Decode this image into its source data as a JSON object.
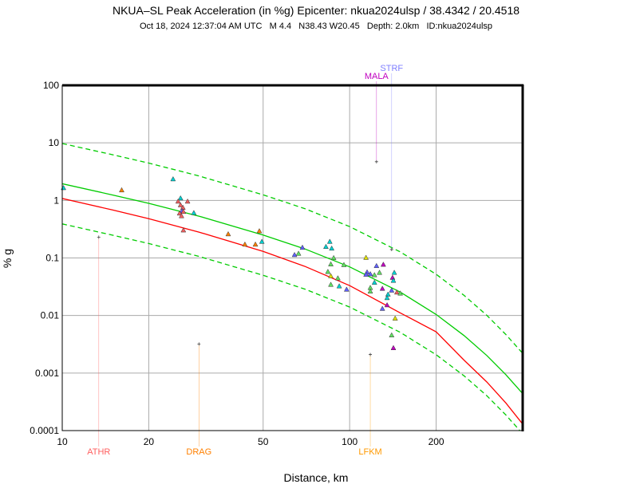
{
  "chart_data": {
    "type": "scatter",
    "title": "NKUA–SL Peak Acceleration (in %g) Epicenter: nkua2024ulsp / 38.4342 / 20.4518",
    "subtitle": "Oct 18, 2024 12:37:04 AM UTC   M 4.4   N38.43 W20.45   Depth: 2.0km   ID:nkua2024ulsp",
    "xlabel": "Distance, km",
    "ylabel": "% g",
    "xscale": "log",
    "yscale": "log",
    "xlim": [
      10,
      400
    ],
    "ylim": [
      0.0001,
      100
    ],
    "xticks": [
      10,
      20,
      50,
      100,
      200
    ],
    "xtick_labels": [
      "10",
      "20",
      "50",
      "100",
      "200"
    ],
    "yticks": [
      0.0001,
      0.001,
      0.01,
      0.1,
      1,
      10,
      100
    ],
    "ytick_labels": [
      "0.0001",
      "0.001",
      "0.01",
      "0.1",
      "1",
      "10",
      "100"
    ],
    "grid": true,
    "curves": [
      {
        "name": "median-red",
        "color": "#ff0000",
        "dashed": false,
        "x": [
          10,
          15,
          20,
          30,
          50,
          70,
          100,
          150,
          200,
          250,
          300,
          350,
          400
        ],
        "y": [
          1.08,
          0.68,
          0.48,
          0.28,
          0.13,
          0.071,
          0.033,
          0.0111,
          0.0052,
          0.00168,
          0.0007,
          0.0003,
          0.00013
        ]
      },
      {
        "name": "median-green",
        "color": "#00cc00",
        "dashed": false,
        "x": [
          10,
          15,
          20,
          30,
          50,
          70,
          100,
          150,
          200,
          250,
          300,
          350,
          400
        ],
        "y": [
          1.95,
          1.24,
          0.89,
          0.53,
          0.25,
          0.143,
          0.07,
          0.0255,
          0.0104,
          0.00448,
          0.00202,
          0.00093,
          0.00044
        ]
      },
      {
        "name": "upper-green",
        "color": "#00cc00",
        "dashed": true,
        "x": [
          10,
          15,
          20,
          30,
          50,
          70,
          100,
          150,
          200,
          250,
          300,
          350,
          400
        ],
        "y": [
          9.75,
          6.2,
          4.45,
          2.65,
          1.25,
          0.715,
          0.35,
          0.1275,
          0.052,
          0.0224,
          0.0101,
          0.00465,
          0.0022
        ]
      },
      {
        "name": "lower-green",
        "color": "#00cc00",
        "dashed": true,
        "x": [
          10,
          15,
          20,
          30,
          50,
          70,
          100,
          150,
          200,
          250,
          300,
          350,
          400
        ],
        "y": [
          0.39,
          0.248,
          0.178,
          0.106,
          0.05,
          0.0286,
          0.014,
          0.0051,
          0.00208,
          0.000896,
          0.000404,
          0.000186,
          8.8e-05
        ]
      }
    ],
    "points": [
      {
        "x": 10.1,
        "y": 1.63,
        "c": "#00d0d0"
      },
      {
        "x": 16.1,
        "y": 1.49,
        "c": "#ff8000"
      },
      {
        "x": 24.3,
        "y": 2.32,
        "c": "#00d0d0"
      },
      {
        "x": 25.8,
        "y": 1.08,
        "c": "#00d0d0"
      },
      {
        "x": 25.3,
        "y": 0.95,
        "c": "#f06060"
      },
      {
        "x": 27.3,
        "y": 0.95,
        "c": "#f06060"
      },
      {
        "x": 25.8,
        "y": 0.82,
        "c": "#f06060"
      },
      {
        "x": 26.3,
        "y": 0.74,
        "c": "#f06060"
      },
      {
        "x": 26.1,
        "y": 0.65,
        "c": "#6060ff"
      },
      {
        "x": 25.6,
        "y": 0.59,
        "c": "#f06060"
      },
      {
        "x": 26.4,
        "y": 0.63,
        "c": "#f06060"
      },
      {
        "x": 26.0,
        "y": 0.53,
        "c": "#f06060"
      },
      {
        "x": 28.7,
        "y": 0.6,
        "c": "#00d0d0"
      },
      {
        "x": 26.4,
        "y": 0.3,
        "c": "#f06060"
      },
      {
        "x": 37.8,
        "y": 0.257,
        "c": "#ff8000"
      },
      {
        "x": 48.5,
        "y": 0.29,
        "c": "#ff8000"
      },
      {
        "x": 43.2,
        "y": 0.17,
        "c": "#ff8000"
      },
      {
        "x": 47.0,
        "y": 0.17,
        "c": "#ff8000"
      },
      {
        "x": 49.5,
        "y": 0.19,
        "c": "#00d0d0"
      },
      {
        "x": 64.3,
        "y": 0.112,
        "c": "#6060ff"
      },
      {
        "x": 66.4,
        "y": 0.118,
        "c": "#60e060"
      },
      {
        "x": 68.5,
        "y": 0.15,
        "c": "#6060ff"
      },
      {
        "x": 85.3,
        "y": 0.19,
        "c": "#00d0d0"
      },
      {
        "x": 82.7,
        "y": 0.155,
        "c": "#00d0d0"
      },
      {
        "x": 86.6,
        "y": 0.145,
        "c": "#00d0d0"
      },
      {
        "x": 88,
        "y": 0.099,
        "c": "#60e060"
      },
      {
        "x": 86,
        "y": 0.077,
        "c": "#60e060"
      },
      {
        "x": 95.5,
        "y": 0.075,
        "c": "#60e060"
      },
      {
        "x": 84,
        "y": 0.057,
        "c": "#60e060"
      },
      {
        "x": 86,
        "y": 0.048,
        "c": "#e0e000"
      },
      {
        "x": 91,
        "y": 0.044,
        "c": "#60e060"
      },
      {
        "x": 86,
        "y": 0.034,
        "c": "#60e060"
      },
      {
        "x": 92,
        "y": 0.032,
        "c": "#00d0d0"
      },
      {
        "x": 97.6,
        "y": 0.028,
        "c": "#6060ff"
      },
      {
        "x": 114,
        "y": 0.1,
        "c": "#e0e000"
      },
      {
        "x": 124,
        "y": 0.072,
        "c": "#6060ff"
      },
      {
        "x": 131,
        "y": 0.076,
        "c": "#c000c0"
      },
      {
        "x": 127,
        "y": 0.055,
        "c": "#60e060"
      },
      {
        "x": 115,
        "y": 0.056,
        "c": "#6060ff"
      },
      {
        "x": 114,
        "y": 0.051,
        "c": "#6060ff"
      },
      {
        "x": 118,
        "y": 0.052,
        "c": "#6060ff"
      },
      {
        "x": 122,
        "y": 0.05,
        "c": "#60e060"
      },
      {
        "x": 143,
        "y": 0.055,
        "c": "#00d0d0"
      },
      {
        "x": 141,
        "y": 0.045,
        "c": "#c000c0"
      },
      {
        "x": 142,
        "y": 0.04,
        "c": "#00d0d0"
      },
      {
        "x": 122,
        "y": 0.037,
        "c": "#00d0d0"
      },
      {
        "x": 118,
        "y": 0.03,
        "c": "#60e060"
      },
      {
        "x": 118,
        "y": 0.026,
        "c": "#60e060"
      },
      {
        "x": 130,
        "y": 0.029,
        "c": "#c000c0"
      },
      {
        "x": 136,
        "y": 0.023,
        "c": "#00d0d0"
      },
      {
        "x": 135,
        "y": 0.02,
        "c": "#00d0d0"
      },
      {
        "x": 140,
        "y": 0.027,
        "c": "#6060ff"
      },
      {
        "x": 146,
        "y": 0.025,
        "c": "#f06060"
      },
      {
        "x": 150,
        "y": 0.024,
        "c": "#60e060"
      },
      {
        "x": 135,
        "y": 0.015,
        "c": "#c000c0"
      },
      {
        "x": 130,
        "y": 0.013,
        "c": "#6060ff"
      },
      {
        "x": 144,
        "y": 0.0088,
        "c": "#e0e000"
      },
      {
        "x": 140,
        "y": 0.0045,
        "c": "#60e060"
      },
      {
        "x": 142,
        "y": 0.0027,
        "c": "#c000c0"
      }
    ],
    "stations": [
      {
        "label": "ATHR",
        "x": 13.4,
        "y": 0.23,
        "color": "#ff6060",
        "pos": "bottom"
      },
      {
        "label": "DRAG",
        "x": 29.9,
        "y": 0.0032,
        "color": "#ff8000",
        "pos": "bottom"
      },
      {
        "label": "LFKM",
        "x": 118,
        "y": 0.0021,
        "color": "#ff9900",
        "pos": "bottom"
      },
      {
        "label": "MALA",
        "x": 124,
        "y": 4.7,
        "color": "#c000c0",
        "pos": "top"
      },
      {
        "label": "STRF",
        "x": 140,
        "y": 0.14,
        "color": "#8080ff",
        "pos": "top"
      }
    ]
  }
}
